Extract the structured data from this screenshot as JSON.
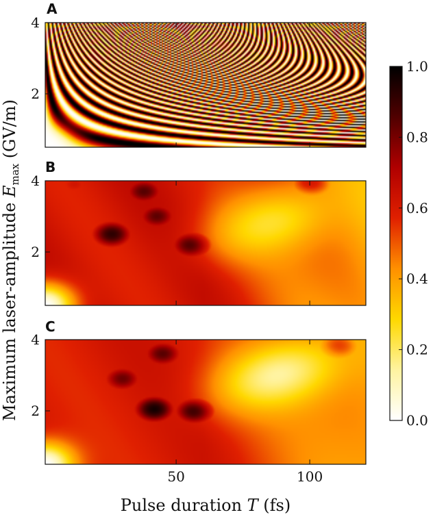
{
  "chart_data": {
    "type": "heatmap",
    "xlabel": {
      "prefix": "Pulse duration ",
      "var": "T",
      "suffix": " (fs)"
    },
    "ylabel": {
      "prefix": "Maximum laser-amplitude ",
      "var": "E",
      "sub": "max",
      "suffix": " (GV/m)"
    },
    "xlim": [
      1,
      121
    ],
    "ylim": [
      0.5,
      4.0
    ],
    "xticks": [
      50,
      100
    ],
    "yticks": [
      2,
      4
    ],
    "colorbar": {
      "range": [
        0.0,
        1.0
      ],
      "ticks": [
        "1.0",
        "0.8",
        "0.6",
        "0.4",
        "0.2",
        "0.0"
      ],
      "colormap": "hot_r",
      "stops": [
        "#ffffff",
        "#fff3a0",
        "#ffd800",
        "#ff9000",
        "#e02000",
        "#b00000",
        "#500000",
        "#000000"
      ]
    },
    "panels": [
      {
        "label": "A",
        "description_values": {
          "pattern": "fringes",
          "phase_scale": 0.0143
        }
      },
      {
        "label": "B",
        "peaks": [
          {
            "x": 56,
            "y": 2.2,
            "value": 0.98
          },
          {
            "x": 26,
            "y": 2.5,
            "value": 0.92
          },
          {
            "x": 43,
            "y": 3.0,
            "value": 0.85
          },
          {
            "x": 38,
            "y": 3.7,
            "value": 0.85
          },
          {
            "x": 100,
            "y": 3.9,
            "value": 0.72
          },
          {
            "x": 12,
            "y": 3.9,
            "value": 0.62
          }
        ],
        "trough": {
          "x": 85,
          "y": 2.8,
          "value": 0.2
        }
      },
      {
        "label": "C",
        "peaks": [
          {
            "x": 42,
            "y": 2.05,
            "value": 0.98
          },
          {
            "x": 57,
            "y": 2.0,
            "value": 0.97
          },
          {
            "x": 30,
            "y": 2.9,
            "value": 0.82
          },
          {
            "x": 45,
            "y": 3.6,
            "value": 0.85
          },
          {
            "x": 110,
            "y": 3.8,
            "value": 0.68
          }
        ],
        "trough": {
          "x": 88,
          "y": 3.0,
          "value": 0.08
        }
      }
    ]
  }
}
